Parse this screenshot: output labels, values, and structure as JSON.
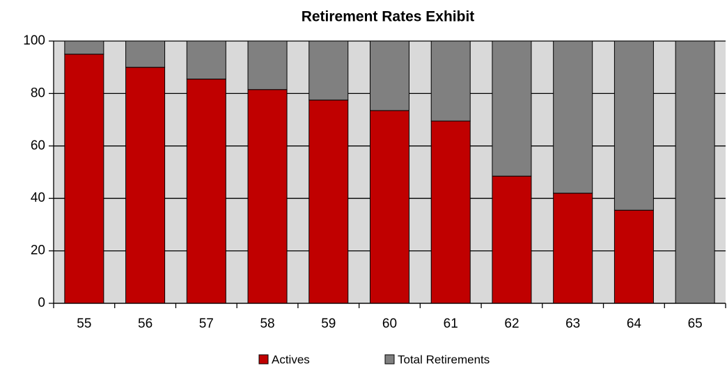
{
  "chart_data": {
    "type": "stacked_bar",
    "title": "Retirement Rates Exhibit",
    "categories": [
      "55",
      "56",
      "57",
      "58",
      "59",
      "60",
      "61",
      "62",
      "63",
      "64",
      "65"
    ],
    "series": [
      {
        "name": "Actives",
        "color": "#c00000",
        "values": [
          95,
          90,
          85.5,
          81.5,
          77.5,
          73.5,
          69.5,
          48.5,
          42,
          35.5,
          0
        ]
      },
      {
        "name": "Total Retirements",
        "color": "#808080",
        "values": [
          5,
          10,
          14.5,
          18.5,
          22.5,
          26.5,
          30.5,
          51.5,
          58,
          64.5,
          100
        ]
      }
    ],
    "ylim": [
      0,
      100
    ],
    "yticks": [
      0,
      20,
      40,
      60,
      80,
      100
    ],
    "grid": true,
    "legend": "bottom"
  }
}
